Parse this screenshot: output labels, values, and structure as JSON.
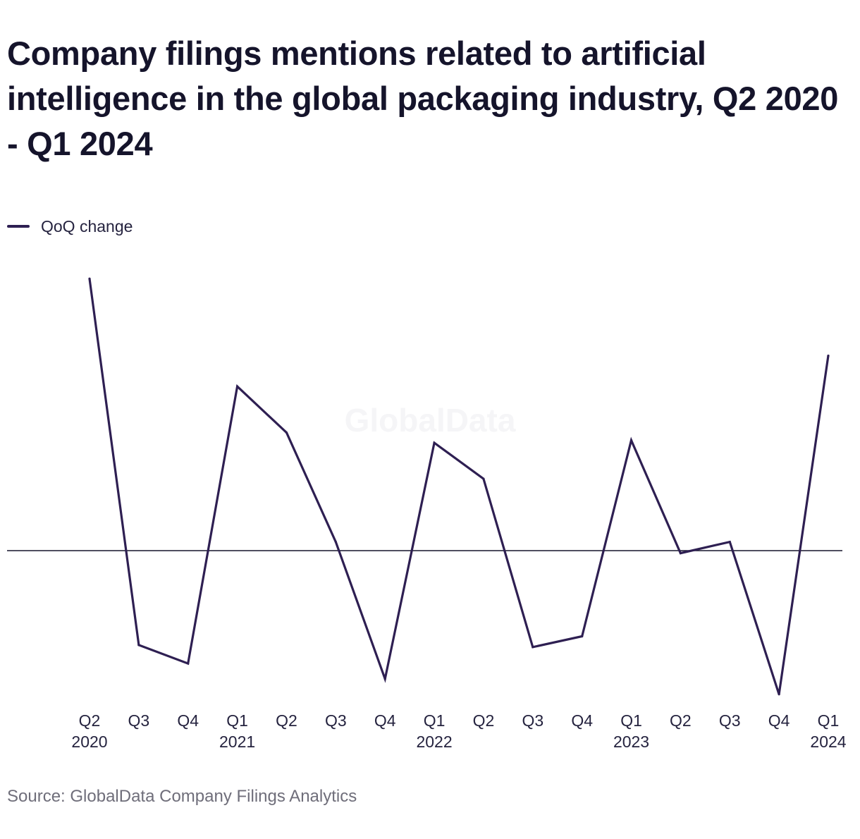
{
  "title": "Company filings mentions related to artificial intelligence in the global packaging industry, Q2 2020 - Q1 2024",
  "source": "Source: GlobalData Company Filings Analytics",
  "watermark": "GlobalData",
  "colors": {
    "line": "#2e1f52",
    "baseline": "#15142b",
    "text": "#15142b"
  },
  "chart_data": {
    "type": "line",
    "legend_position": "top-left",
    "grid": false,
    "yaxis_shown": false,
    "baseline_value": 0,
    "ylim": [
      -2.9,
      5.4
    ],
    "x": [
      "Q2 2020",
      "Q3 2020",
      "Q4 2020",
      "Q1 2021",
      "Q2 2021",
      "Q3 2021",
      "Q4 2021",
      "Q1 2022",
      "Q2 2022",
      "Q3 2022",
      "Q4 2022",
      "Q1 2023",
      "Q2 2023",
      "Q3 2023",
      "Q4 2023",
      "Q1 2024"
    ],
    "tick_labels": [
      {
        "quarter": "Q2",
        "year": "2020"
      },
      {
        "quarter": "Q3",
        "year": ""
      },
      {
        "quarter": "Q4",
        "year": ""
      },
      {
        "quarter": "Q1",
        "year": "2021"
      },
      {
        "quarter": "Q2",
        "year": ""
      },
      {
        "quarter": "Q3",
        "year": ""
      },
      {
        "quarter": "Q4",
        "year": ""
      },
      {
        "quarter": "Q1",
        "year": "2022"
      },
      {
        "quarter": "Q2",
        "year": ""
      },
      {
        "quarter": "Q3",
        "year": ""
      },
      {
        "quarter": "Q4",
        "year": ""
      },
      {
        "quarter": "Q1",
        "year": "2023"
      },
      {
        "quarter": "Q2",
        "year": ""
      },
      {
        "quarter": "Q3",
        "year": ""
      },
      {
        "quarter": "Q4",
        "year": ""
      },
      {
        "quarter": "Q1",
        "year": "2024"
      }
    ],
    "series": [
      {
        "name": "QoQ change",
        "values": [
          5.3,
          -1.84,
          -2.2,
          3.2,
          2.3,
          0.17,
          -2.5,
          2.1,
          1.4,
          -1.88,
          -1.67,
          2.15,
          -0.05,
          0.17,
          -2.8,
          3.8
        ]
      }
    ]
  }
}
